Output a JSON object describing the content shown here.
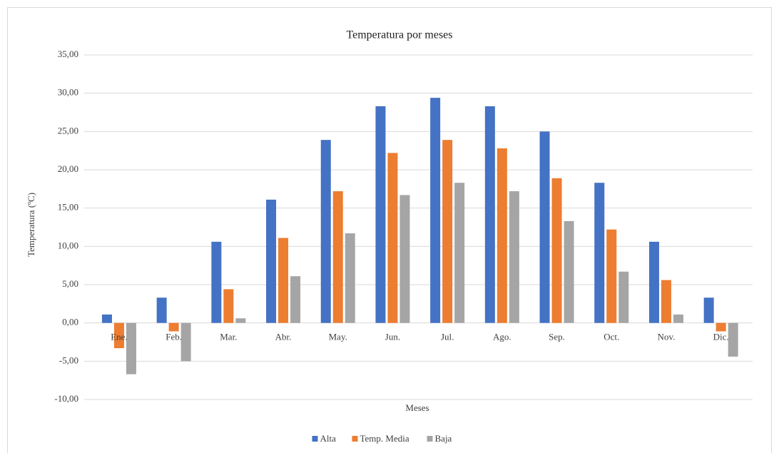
{
  "chart_data": {
    "type": "bar",
    "title": "Temperatura por meses",
    "x_label": "Meses",
    "y_label": "Temperatura (ºC)",
    "categories": [
      "Ene.",
      "Feb.",
      "Mar.",
      "Abr.",
      "May.",
      "Jun.",
      "Jul.",
      "Ago.",
      "Sep.",
      "Oct.",
      "Nov.",
      "Dic."
    ],
    "series": [
      {
        "name": "Alta",
        "color": "#4472c4",
        "values": [
          1.1,
          3.3,
          10.6,
          16.1,
          23.9,
          28.3,
          29.4,
          28.3,
          25.0,
          18.3,
          10.6,
          3.3
        ]
      },
      {
        "name": "Temp. Media",
        "color": "#ed7d31",
        "values": [
          -3.3,
          -1.1,
          4.4,
          11.1,
          17.2,
          22.2,
          23.9,
          22.8,
          18.9,
          12.2,
          5.6,
          -1.1
        ]
      },
      {
        "name": "Baja",
        "color": "#a5a5a5",
        "values": [
          -6.7,
          -5.0,
          0.6,
          6.1,
          11.7,
          16.7,
          18.3,
          17.2,
          13.3,
          6.7,
          1.1,
          -4.4
        ]
      }
    ],
    "ylim": [
      -10,
      35
    ],
    "yticks": [
      {
        "value": -10,
        "label": "-10,00"
      },
      {
        "value": -5,
        "label": "-5,00"
      },
      {
        "value": 0,
        "label": "0,00"
      },
      {
        "value": 5,
        "label": "5,00"
      },
      {
        "value": 10,
        "label": "10,00"
      },
      {
        "value": 15,
        "label": "15,00"
      },
      {
        "value": 20,
        "label": "20,00"
      },
      {
        "value": 25,
        "label": "25,00"
      },
      {
        "value": 30,
        "label": "30,00"
      },
      {
        "value": 35,
        "label": "35,00"
      }
    ],
    "grid": true,
    "legend": "bottom"
  }
}
